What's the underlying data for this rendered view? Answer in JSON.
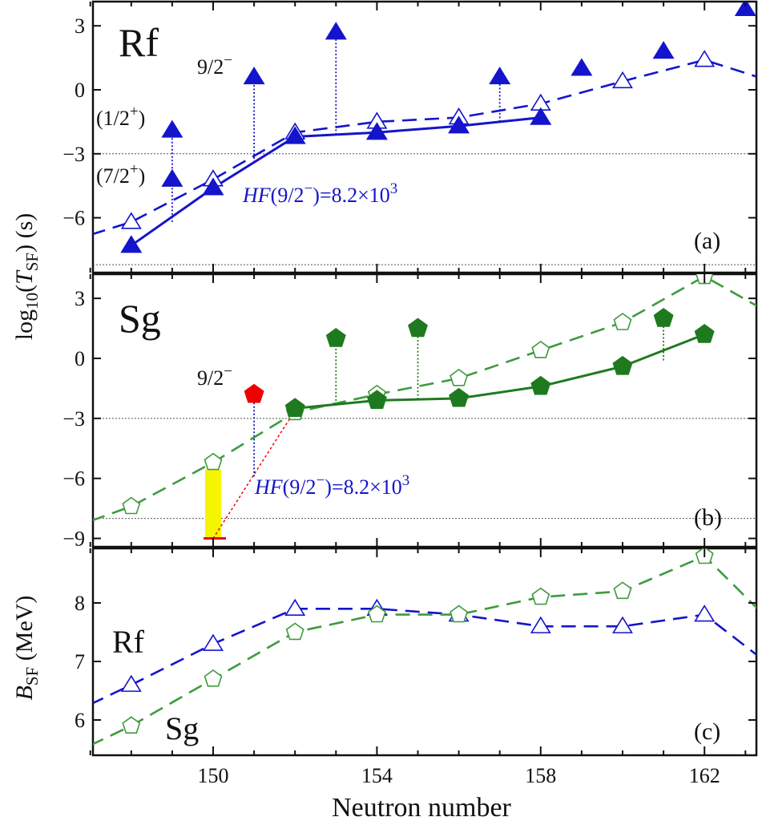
{
  "figure": {
    "x_label": "Neutron number",
    "y_label_shared": "log10(TSF) (s)",
    "x_ticks": [
      150,
      154,
      158,
      162
    ]
  },
  "colors": {
    "rf": "#1414cc",
    "sg": "#1f7a1f",
    "sg_dash": "#3f9a3f",
    "red": "#ee0000",
    "yellow": "#f5f500",
    "grid": "#555555"
  },
  "chart_data": [
    {
      "panel": "(a)",
      "type": "line",
      "title": "Rf",
      "ylim": [
        -8.5,
        4
      ],
      "yticks": [
        3,
        0,
        -3,
        -6
      ],
      "xlim": [
        146.8,
        163.2
      ],
      "hlines": [
        -3,
        -8.2
      ],
      "series": [
        {
          "style": "dashed",
          "marker": "open-triangle",
          "x": [
            146.5,
            148,
            150,
            152,
            154,
            156,
            158,
            160,
            162,
            163.3
          ],
          "y": [
            -7.1,
            -6.2,
            -4.2,
            -2.0,
            -1.5,
            -1.3,
            -0.65,
            0.4,
            1.4,
            0.6
          ]
        },
        {
          "style": "solid",
          "marker": "filled-triangle",
          "x": [
            148,
            150,
            152,
            154,
            156,
            158
          ],
          "y": [
            -7.3,
            -4.6,
            -2.2,
            -2.0,
            -1.7,
            -1.3
          ]
        },
        {
          "style": "none",
          "marker": "filled-triangle",
          "x": [
            149,
            149,
            151,
            153,
            157,
            159,
            161,
            163
          ],
          "y": [
            -1.9,
            -4.2,
            0.6,
            2.7,
            0.6,
            1.0,
            1.8,
            3.8
          ]
        }
      ],
      "annotations": [
        "9/2−",
        "(1/2+)",
        "(7/2+)",
        "HF(9/2−)=8.2×10^3"
      ]
    },
    {
      "panel": "(b)",
      "type": "line",
      "title": "Sg",
      "ylim": [
        -9.5,
        4
      ],
      "yticks": [
        3,
        0,
        -3,
        -6,
        -9
      ],
      "xlim": [
        146.8,
        163.2
      ],
      "hlines": [
        -3,
        -8
      ],
      "series": [
        {
          "style": "dashed",
          "marker": "open-pentagon",
          "x": [
            146.5,
            148,
            150,
            152,
            154,
            156,
            158,
            160,
            162,
            163.3
          ],
          "y": [
            -8.5,
            -7.4,
            -5.2,
            -2.7,
            -1.8,
            -1.0,
            0.4,
            1.8,
            4.1,
            2.6
          ]
        },
        {
          "style": "solid",
          "marker": "filled-pentagon",
          "x": [
            152,
            154,
            156,
            158,
            160,
            162
          ],
          "y": [
            -2.5,
            -2.1,
            -2.0,
            -1.4,
            -0.4,
            1.2
          ]
        },
        {
          "style": "none",
          "marker": "filled-pentagon",
          "x": [
            153,
            155,
            161
          ],
          "y": [
            1.0,
            1.5,
            2.0
          ]
        },
        {
          "style": "none",
          "marker": "red-pentagon",
          "x": [
            151
          ],
          "y": [
            -1.8
          ]
        }
      ],
      "annotations": [
        "9/2−",
        "HF(9/2−)=8.2×10^3"
      ]
    },
    {
      "panel": "(c)",
      "type": "line",
      "ylabel": "BSF (MeV)",
      "ylim": [
        5.3,
        8.95
      ],
      "yticks": [
        6,
        7,
        8
      ],
      "xlim": [
        146.8,
        163.2
      ],
      "series": [
        {
          "name": "Rf",
          "style": "dashed",
          "marker": "open-triangle",
          "x": [
            146.5,
            148,
            150,
            152,
            154,
            156,
            158,
            160,
            162,
            163.3
          ],
          "y": [
            6.1,
            6.6,
            7.3,
            7.9,
            7.9,
            7.8,
            7.6,
            7.6,
            7.8,
            7.1
          ]
        },
        {
          "name": "Sg",
          "style": "dashed",
          "marker": "open-pentagon",
          "x": [
            146.5,
            148,
            150,
            152,
            154,
            156,
            158,
            160,
            162,
            163.3
          ],
          "y": [
            5.4,
            5.9,
            6.7,
            7.5,
            7.8,
            7.8,
            8.1,
            8.2,
            8.8,
            7.9
          ]
        }
      ]
    }
  ],
  "labels": {
    "a_title": "Rf",
    "a_nine_half": "9/2−",
    "a_one_half": "(1/2+)",
    "a_seven_half": "(7/2+)",
    "a_hf": "HF(9/2−)=8.2×103",
    "a_panel": "(a)",
    "b_title": "Sg",
    "b_nine_half": "9/2−",
    "b_hf": "HF(9/2−)=8.2×103",
    "b_panel": "(b)",
    "c_rf": "Rf",
    "c_sg": "Sg",
    "c_panel": "(c)"
  }
}
